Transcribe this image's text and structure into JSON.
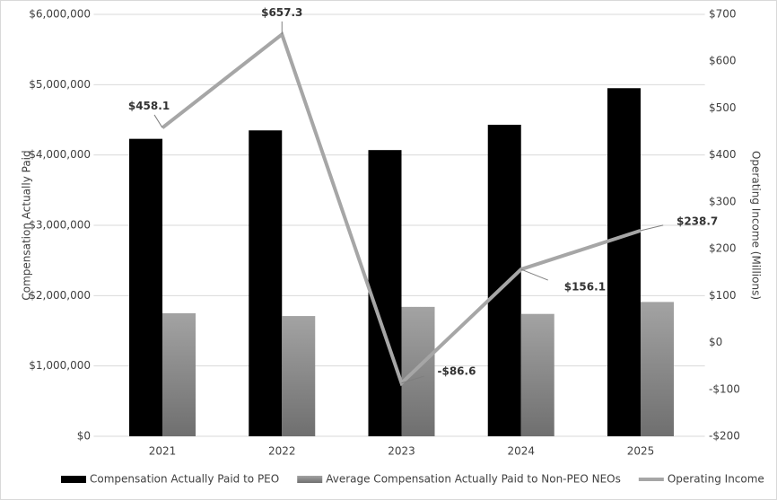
{
  "chart_data": {
    "type": "bar",
    "categories": [
      "2021",
      "2022",
      "2023",
      "2024",
      "2025"
    ],
    "series": [
      {
        "name": "Compensation Actually Paid to PEO",
        "type": "bar",
        "color": "#000000",
        "values": [
          4230000,
          4350000,
          4070000,
          4430000,
          4950000
        ]
      },
      {
        "name": "Average Compensation Actually Paid to Non-PEO NEOs",
        "type": "bar",
        "color": "#8c8c8c",
        "values": [
          1750000,
          1710000,
          1840000,
          1740000,
          1910000
        ]
      },
      {
        "name": "Operating Income",
        "type": "line",
        "axis": "y2",
        "color": "#a6a6a6",
        "values": [
          458.1,
          657.3,
          -86.6,
          156.1,
          238.7
        ],
        "value_labels": [
          "$458.1",
          "$657.3",
          "-$86.6",
          "$156.1",
          "$238.7"
        ]
      }
    ],
    "ylabel": "Compensation Actually Paid",
    "y2label": "Operating Income (Millions)",
    "ylim": [
      0,
      6000000
    ],
    "yticks": [
      {
        "value": 0,
        "label": "$0"
      },
      {
        "value": 1000000,
        "label": "$1,000,000"
      },
      {
        "value": 2000000,
        "label": "$2,000,000"
      },
      {
        "value": 3000000,
        "label": "$3,000,000"
      },
      {
        "value": 4000000,
        "label": "$4,000,000"
      },
      {
        "value": 5000000,
        "label": "$5,000,000"
      },
      {
        "value": 6000000,
        "label": "$6,000,000"
      }
    ],
    "y2lim": [
      -200,
      700
    ],
    "y2ticks": [
      {
        "value": -200,
        "label": "-$200"
      },
      {
        "value": -100,
        "label": "-$100"
      },
      {
        "value": 0,
        "label": "$0"
      },
      {
        "value": 100,
        "label": "$100"
      },
      {
        "value": 200,
        "label": "$200"
      },
      {
        "value": 300,
        "label": "$300"
      },
      {
        "value": 400,
        "label": "$400"
      },
      {
        "value": 500,
        "label": "$500"
      },
      {
        "value": 600,
        "label": "$600"
      },
      {
        "value": 700,
        "label": "$700"
      }
    ],
    "grid": true,
    "legend": "bottom"
  }
}
